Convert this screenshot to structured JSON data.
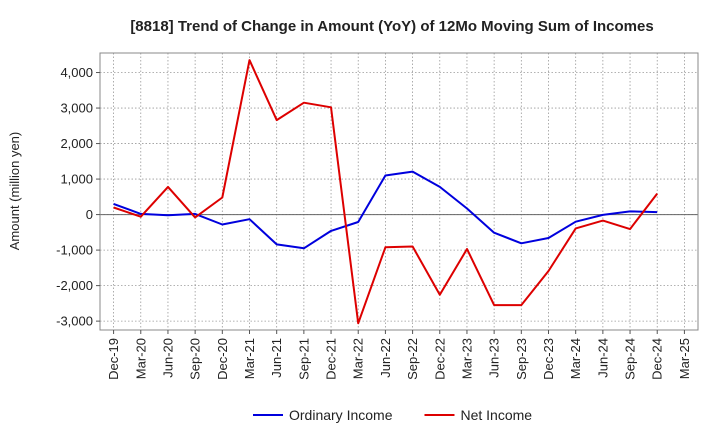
{
  "chart_data": {
    "type": "line",
    "title": "[8818]  Trend of Change in Amount (YoY) of 12Mo Moving Sum of Incomes",
    "ylabel": "Amount (million yen)",
    "xlabel": "",
    "x": [
      "Dec-19",
      "Mar-20",
      "Jun-20",
      "Sep-20",
      "Dec-20",
      "Mar-21",
      "Jun-21",
      "Sep-21",
      "Dec-21",
      "Mar-22",
      "Jun-22",
      "Sep-22",
      "Dec-22",
      "Mar-23",
      "Jun-23",
      "Sep-23",
      "Dec-23",
      "Mar-24",
      "Jun-24",
      "Sep-24",
      "Dec-24",
      "Mar-25"
    ],
    "yticks": [
      -3000,
      -2000,
      -1000,
      0,
      1000,
      2000,
      3000,
      4000
    ],
    "ytick_labels": [
      "-3,000",
      "-2,000",
      "-1,000",
      "0",
      "1,000",
      "2,000",
      "3,000",
      "4,000"
    ],
    "ylim": [
      -3250,
      4550
    ],
    "grid": true,
    "legend_position": "bottom",
    "series": [
      {
        "name": "Ordinary Income",
        "color": "#0000dd",
        "values": [
          300,
          20,
          -20,
          20,
          -280,
          -130,
          -840,
          -950,
          -460,
          -210,
          1100,
          1210,
          780,
          170,
          -510,
          -810,
          -660,
          -200,
          -10,
          90,
          70,
          null
        ]
      },
      {
        "name": "Net Income",
        "color": "#dd0000",
        "values": [
          200,
          -60,
          780,
          -80,
          480,
          4350,
          2660,
          3150,
          3020,
          -3060,
          -920,
          -900,
          -2260,
          -970,
          -2550,
          -2550,
          -1590,
          -390,
          -170,
          -410,
          590,
          null
        ]
      }
    ]
  }
}
